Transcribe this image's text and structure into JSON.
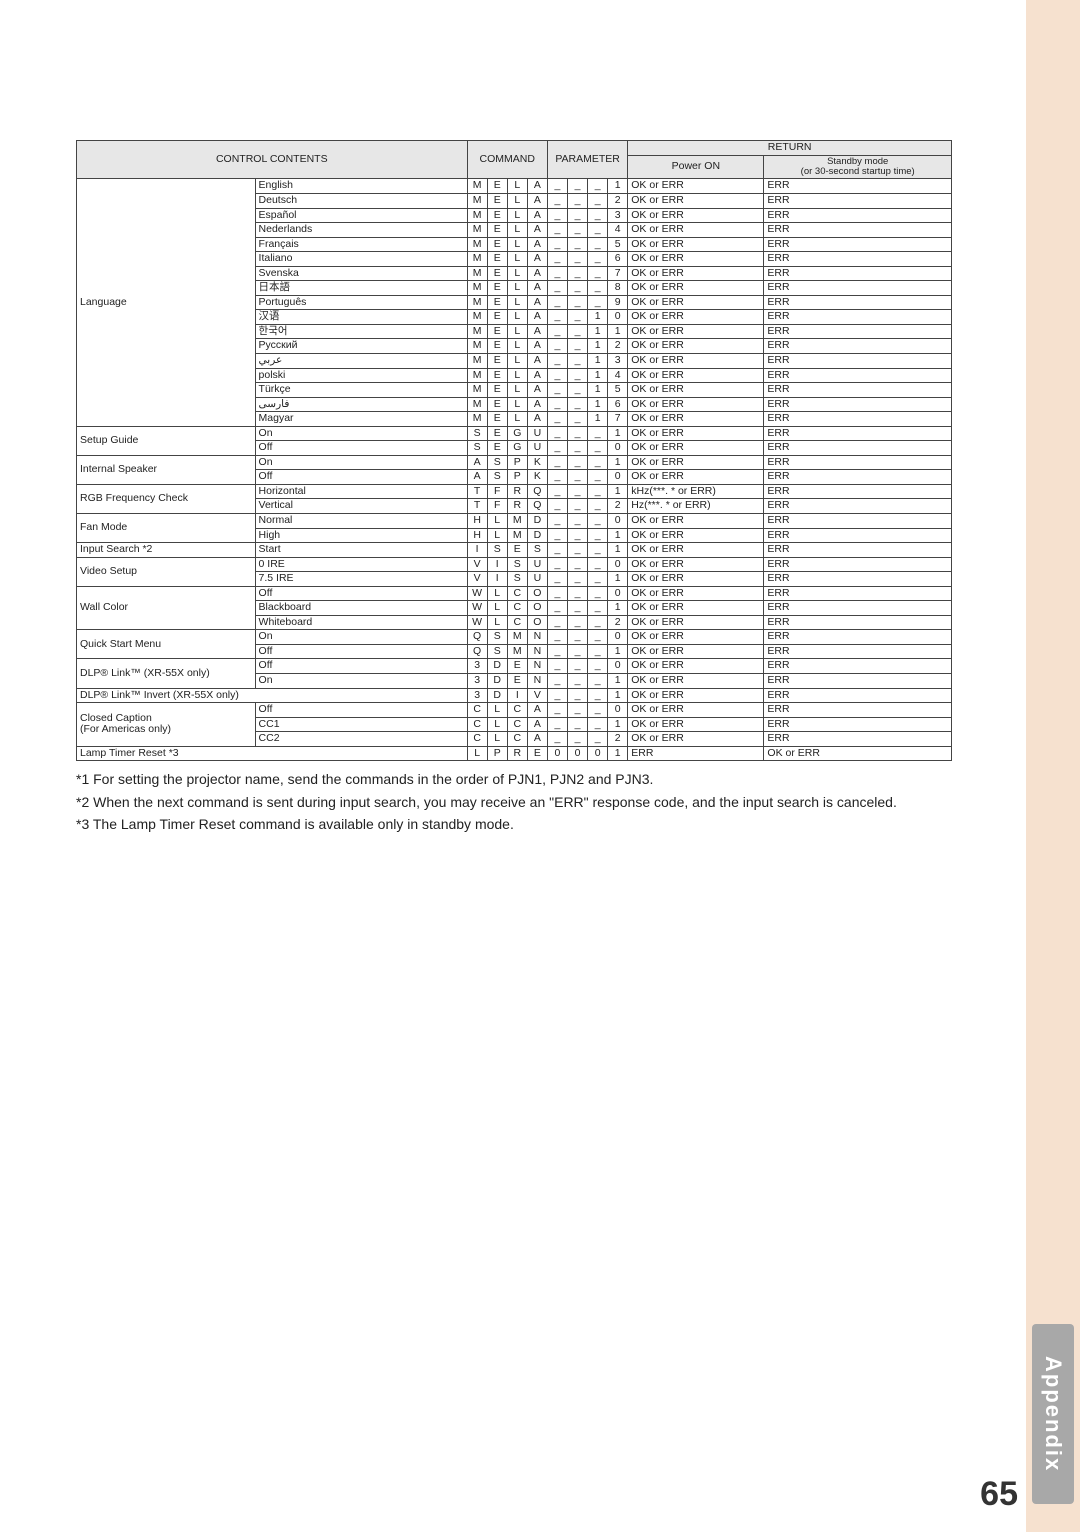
{
  "pageNumber": "65",
  "sectionLabel": "Appendix",
  "headers": {
    "controlContents": "CONTROL CONTENTS",
    "command": "COMMAND",
    "parameter": "PARAMETER",
    "return": "RETURN",
    "powerOn": "Power ON",
    "standby": "Standby mode\n(or 30-second startup time)"
  },
  "groups": [
    {
      "label": "Language",
      "rows": [
        {
          "sub": "English",
          "cmd": [
            "M",
            "E",
            "L",
            "A"
          ],
          "par": [
            "_",
            "_",
            "_",
            "1"
          ],
          "r1": "OK or ERR",
          "r2": "ERR"
        },
        {
          "sub": "Deutsch",
          "cmd": [
            "M",
            "E",
            "L",
            "A"
          ],
          "par": [
            "_",
            "_",
            "_",
            "2"
          ],
          "r1": "OK or ERR",
          "r2": "ERR"
        },
        {
          "sub": "Español",
          "cmd": [
            "M",
            "E",
            "L",
            "A"
          ],
          "par": [
            "_",
            "_",
            "_",
            "3"
          ],
          "r1": "OK or ERR",
          "r2": "ERR"
        },
        {
          "sub": "Nederlands",
          "cmd": [
            "M",
            "E",
            "L",
            "A"
          ],
          "par": [
            "_",
            "_",
            "_",
            "4"
          ],
          "r1": "OK or ERR",
          "r2": "ERR"
        },
        {
          "sub": "Français",
          "cmd": [
            "M",
            "E",
            "L",
            "A"
          ],
          "par": [
            "_",
            "_",
            "_",
            "5"
          ],
          "r1": "OK or ERR",
          "r2": "ERR"
        },
        {
          "sub": "Italiano",
          "cmd": [
            "M",
            "E",
            "L",
            "A"
          ],
          "par": [
            "_",
            "_",
            "_",
            "6"
          ],
          "r1": "OK or ERR",
          "r2": "ERR"
        },
        {
          "sub": "Svenska",
          "cmd": [
            "M",
            "E",
            "L",
            "A"
          ],
          "par": [
            "_",
            "_",
            "_",
            "7"
          ],
          "r1": "OK or ERR",
          "r2": "ERR"
        },
        {
          "sub": "日本語",
          "cmd": [
            "M",
            "E",
            "L",
            "A"
          ],
          "par": [
            "_",
            "_",
            "_",
            "8"
          ],
          "r1": "OK or ERR",
          "r2": "ERR"
        },
        {
          "sub": "Português",
          "cmd": [
            "M",
            "E",
            "L",
            "A"
          ],
          "par": [
            "_",
            "_",
            "_",
            "9"
          ],
          "r1": "OK or ERR",
          "r2": "ERR"
        },
        {
          "sub": "汉语",
          "cmd": [
            "M",
            "E",
            "L",
            "A"
          ],
          "par": [
            "_",
            "_",
            "1",
            "0"
          ],
          "r1": "OK or ERR",
          "r2": "ERR"
        },
        {
          "sub": "한국어",
          "cmd": [
            "M",
            "E",
            "L",
            "A"
          ],
          "par": [
            "_",
            "_",
            "1",
            "1"
          ],
          "r1": "OK or ERR",
          "r2": "ERR"
        },
        {
          "sub": "Русский",
          "cmd": [
            "M",
            "E",
            "L",
            "A"
          ],
          "par": [
            "_",
            "_",
            "1",
            "2"
          ],
          "r1": "OK or ERR",
          "r2": "ERR"
        },
        {
          "sub": "عربي",
          "cmd": [
            "M",
            "E",
            "L",
            "A"
          ],
          "par": [
            "_",
            "_",
            "1",
            "3"
          ],
          "r1": "OK or ERR",
          "r2": "ERR"
        },
        {
          "sub": "polski",
          "cmd": [
            "M",
            "E",
            "L",
            "A"
          ],
          "par": [
            "_",
            "_",
            "1",
            "4"
          ],
          "r1": "OK or ERR",
          "r2": "ERR"
        },
        {
          "sub": "Türkçe",
          "cmd": [
            "M",
            "E",
            "L",
            "A"
          ],
          "par": [
            "_",
            "_",
            "1",
            "5"
          ],
          "r1": "OK or ERR",
          "r2": "ERR"
        },
        {
          "sub": "فارسی",
          "cmd": [
            "M",
            "E",
            "L",
            "A"
          ],
          "par": [
            "_",
            "_",
            "1",
            "6"
          ],
          "r1": "OK or ERR",
          "r2": "ERR"
        },
        {
          "sub": "Magyar",
          "cmd": [
            "M",
            "E",
            "L",
            "A"
          ],
          "par": [
            "_",
            "_",
            "1",
            "7"
          ],
          "r1": "OK or ERR",
          "r2": "ERR"
        }
      ]
    },
    {
      "label": "Setup Guide",
      "rows": [
        {
          "sub": "On",
          "cmd": [
            "S",
            "E",
            "G",
            "U"
          ],
          "par": [
            "_",
            "_",
            "_",
            "1"
          ],
          "r1": "OK or ERR",
          "r2": "ERR"
        },
        {
          "sub": "Off",
          "cmd": [
            "S",
            "E",
            "G",
            "U"
          ],
          "par": [
            "_",
            "_",
            "_",
            "0"
          ],
          "r1": "OK or ERR",
          "r2": "ERR"
        }
      ]
    },
    {
      "label": "Internal Speaker",
      "rows": [
        {
          "sub": "On",
          "cmd": [
            "A",
            "S",
            "P",
            "K"
          ],
          "par": [
            "_",
            "_",
            "_",
            "1"
          ],
          "r1": "OK or ERR",
          "r2": "ERR"
        },
        {
          "sub": "Off",
          "cmd": [
            "A",
            "S",
            "P",
            "K"
          ],
          "par": [
            "_",
            "_",
            "_",
            "0"
          ],
          "r1": "OK or ERR",
          "r2": "ERR"
        }
      ]
    },
    {
      "label": "RGB Frequency Check",
      "rows": [
        {
          "sub": "Horizontal",
          "cmd": [
            "T",
            "F",
            "R",
            "Q"
          ],
          "par": [
            "_",
            "_",
            "_",
            "1"
          ],
          "r1": "kHz(***. * or ERR)",
          "r2": "ERR"
        },
        {
          "sub": "Vertical",
          "cmd": [
            "T",
            "F",
            "R",
            "Q"
          ],
          "par": [
            "_",
            "_",
            "_",
            "2"
          ],
          "r1": "Hz(***. * or ERR)",
          "r2": "ERR"
        }
      ]
    },
    {
      "label": "Fan Mode",
      "rows": [
        {
          "sub": "Normal",
          "cmd": [
            "H",
            "L",
            "M",
            "D"
          ],
          "par": [
            "_",
            "_",
            "_",
            "0"
          ],
          "r1": "OK or ERR",
          "r2": "ERR"
        },
        {
          "sub": "High",
          "cmd": [
            "H",
            "L",
            "M",
            "D"
          ],
          "par": [
            "_",
            "_",
            "_",
            "1"
          ],
          "r1": "OK or ERR",
          "r2": "ERR"
        }
      ]
    },
    {
      "label": "Input Search *2",
      "rows": [
        {
          "sub": "Start",
          "cmd": [
            "I",
            "S",
            "E",
            "S"
          ],
          "par": [
            "_",
            "_",
            "_",
            "1"
          ],
          "r1": "OK or ERR",
          "r2": "ERR"
        }
      ]
    },
    {
      "label": "Video Setup",
      "rows": [
        {
          "sub": "0 IRE",
          "cmd": [
            "V",
            "I",
            "S",
            "U"
          ],
          "par": [
            "_",
            "_",
            "_",
            "0"
          ],
          "r1": "OK or ERR",
          "r2": "ERR"
        },
        {
          "sub": "7.5 IRE",
          "cmd": [
            "V",
            "I",
            "S",
            "U"
          ],
          "par": [
            "_",
            "_",
            "_",
            "1"
          ],
          "r1": "OK or ERR",
          "r2": "ERR"
        }
      ]
    },
    {
      "label": "Wall Color",
      "rows": [
        {
          "sub": "Off",
          "cmd": [
            "W",
            "L",
            "C",
            "O"
          ],
          "par": [
            "_",
            "_",
            "_",
            "0"
          ],
          "r1": "OK or ERR",
          "r2": "ERR"
        },
        {
          "sub": "Blackboard",
          "cmd": [
            "W",
            "L",
            "C",
            "O"
          ],
          "par": [
            "_",
            "_",
            "_",
            "1"
          ],
          "r1": "OK or ERR",
          "r2": "ERR"
        },
        {
          "sub": "Whiteboard",
          "cmd": [
            "W",
            "L",
            "C",
            "O"
          ],
          "par": [
            "_",
            "_",
            "_",
            "2"
          ],
          "r1": "OK or ERR",
          "r2": "ERR"
        }
      ]
    },
    {
      "label": "Quick Start Menu",
      "rows": [
        {
          "sub": "On",
          "cmd": [
            "Q",
            "S",
            "M",
            "N"
          ],
          "par": [
            "_",
            "_",
            "_",
            "0"
          ],
          "r1": "OK or ERR",
          "r2": "ERR"
        },
        {
          "sub": "Off",
          "cmd": [
            "Q",
            "S",
            "M",
            "N"
          ],
          "par": [
            "_",
            "_",
            "_",
            "1"
          ],
          "r1": "OK or ERR",
          "r2": "ERR"
        }
      ]
    },
    {
      "label": "DLP® Link™ (XR-55X only)",
      "rows": [
        {
          "sub": "Off",
          "cmd": [
            "3",
            "D",
            "E",
            "N"
          ],
          "par": [
            "_",
            "_",
            "_",
            "0"
          ],
          "r1": "OK or ERR",
          "r2": "ERR"
        },
        {
          "sub": "On",
          "cmd": [
            "3",
            "D",
            "E",
            "N"
          ],
          "par": [
            "_",
            "_",
            "_",
            "1"
          ],
          "r1": "OK or ERR",
          "r2": "ERR"
        }
      ]
    },
    {
      "label": "DLP® Link™ Invert (XR-55X only)",
      "span2": true,
      "rows": [
        {
          "cmd": [
            "3",
            "D",
            "I",
            "V"
          ],
          "par": [
            "_",
            "_",
            "_",
            "1"
          ],
          "r1": "OK or ERR",
          "r2": "ERR"
        }
      ]
    },
    {
      "label": "Closed Caption\n(For Americas only)",
      "rows": [
        {
          "sub": "Off",
          "cmd": [
            "C",
            "L",
            "C",
            "A"
          ],
          "par": [
            "_",
            "_",
            "_",
            "0"
          ],
          "r1": "OK or ERR",
          "r2": "ERR"
        },
        {
          "sub": "CC1",
          "cmd": [
            "C",
            "L",
            "C",
            "A"
          ],
          "par": [
            "_",
            "_",
            "_",
            "1"
          ],
          "r1": "OK or ERR",
          "r2": "ERR"
        },
        {
          "sub": "CC2",
          "cmd": [
            "C",
            "L",
            "C",
            "A"
          ],
          "par": [
            "_",
            "_",
            "_",
            "2"
          ],
          "r1": "OK or ERR",
          "r2": "ERR"
        }
      ]
    },
    {
      "label": "Lamp Timer Reset *3",
      "span2": true,
      "rows": [
        {
          "cmd": [
            "L",
            "P",
            "R",
            "E"
          ],
          "par": [
            "0",
            "0",
            "0",
            "1"
          ],
          "r1": "ERR",
          "r2": "OK or ERR"
        }
      ]
    }
  ],
  "footnotes": [
    "*1  For setting the projector name, send the commands in the order of PJN1, PJN2 and PJN3.",
    "*2  When the next command is sent during input search, you may receive an \"ERR\" response code, and the input search is canceled.",
    "*3  The Lamp Timer Reset command is available only in standby mode."
  ]
}
